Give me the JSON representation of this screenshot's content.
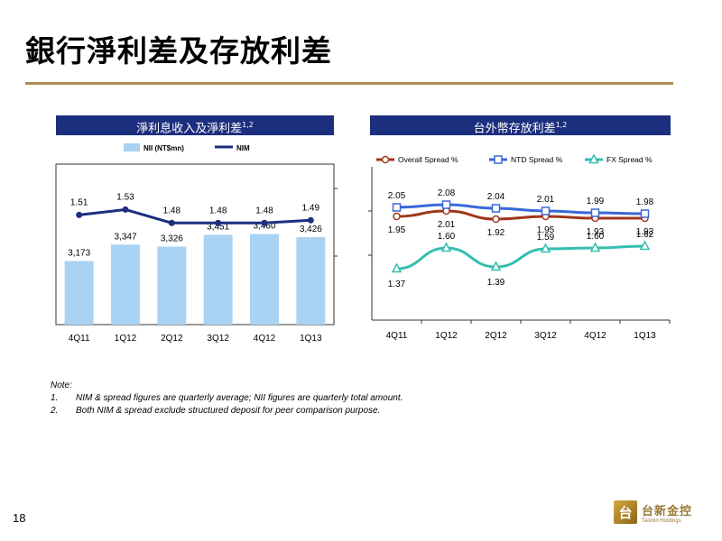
{
  "page": {
    "title": "銀行淨利差及存放利差",
    "page_number": "18"
  },
  "panels": {
    "left_header": "淨利息收入及淨利差",
    "left_header_sup": "1,2",
    "right_header": "台外幣存放利差",
    "right_header_sup": "1,2"
  },
  "notes": {
    "heading": "Note:",
    "items": [
      {
        "num": "1.",
        "text": "NIM & spread figures are quarterly average; NII figures are quarterly total amount."
      },
      {
        "num": "2.",
        "text": "Both NIM & spread exclude structured deposit for peer comparison purpose."
      }
    ]
  },
  "logo": {
    "mark": "台",
    "name_cn": "台新金控",
    "name_en": "Taishin Holdings"
  },
  "colors": {
    "header_bg": "#1c2f7e",
    "bar": "#a9d2f3",
    "nim_line": "#1c2f7e",
    "overall": "#a0361b",
    "ntd": "#3868d8",
    "fx": "#34bfb0",
    "rule": "#b08a54"
  },
  "chart_data": [
    {
      "type": "bar",
      "categories": [
        "4Q11",
        "1Q12",
        "2Q12",
        "3Q12",
        "4Q12",
        "1Q13"
      ],
      "series": [
        {
          "name": "NII (NT$mn)",
          "type": "bar",
          "values": [
            3173,
            3347,
            3326,
            3451,
            3460,
            3426
          ],
          "labels": [
            "3,173",
            "3,347",
            "3,326",
            "3,451",
            "3,460",
            "3,426"
          ]
        },
        {
          "name": "NIM",
          "type": "line",
          "values": [
            1.51,
            1.53,
            1.48,
            1.48,
            1.48,
            1.49
          ],
          "labels": [
            "1.51",
            "1.53",
            "1.48",
            "1.48",
            "1.48",
            "1.49"
          ]
        }
      ],
      "legend": "top"
    },
    {
      "type": "line",
      "categories": [
        "4Q11",
        "1Q12",
        "2Q12",
        "3Q12",
        "4Q12",
        "1Q13"
      ],
      "series": [
        {
          "name": "Overall Spread %",
          "values": [
            1.95,
            2.01,
            1.92,
            1.95,
            1.93,
            1.93
          ],
          "labels": [
            "1.95",
            "2.01",
            "1.92",
            "1.95",
            "1.93",
            "1.93"
          ]
        },
        {
          "name": "NTD Spread %",
          "values": [
            2.05,
            2.08,
            2.04,
            2.01,
            1.99,
            1.98
          ],
          "labels": [
            "2.05",
            "2.08",
            "2.04",
            "2.01",
            "1.99",
            "1.98"
          ]
        },
        {
          "name": "FX Spread %",
          "values": [
            1.37,
            1.6,
            1.39,
            1.59,
            1.6,
            1.62
          ],
          "labels": [
            "1.37",
            "1.60",
            "1.39",
            "1.59",
            "1.60",
            "1.62"
          ]
        }
      ],
      "legend": "top"
    }
  ]
}
